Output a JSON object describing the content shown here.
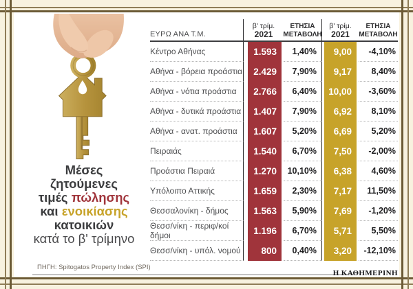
{
  "title": {
    "line1": "Μέσες",
    "line2": "ζητούμενες",
    "line3_prefix": "τιμές",
    "line3_highlight": "πώλησης",
    "line4_prefix": "και",
    "line4_highlight": "ενοικίασης",
    "line5": "κατοικιών",
    "line6": "κατά το β' τρίμηνο"
  },
  "table": {
    "corner_label": "ΕΥΡΩ ΑΝΑ Τ.Μ.",
    "headers": {
      "quarter_line1": "β' τρίμ.",
      "quarter_line2": "2021",
      "change_line1": "ΕΤΗΣΙΑ",
      "change_line2": "ΜΕΤΑΒΟΛΗ"
    }
  },
  "chart_data": {
    "type": "table",
    "title": "Μέσες ζητούμενες τιμές πώλησης και ενοικίασης κατοικιών κατά το β' τρίμηνο",
    "unit_label": "ΕΥΡΩ ΑΝΑ Τ.Μ.",
    "column_groups": [
      {
        "metric": "πώλησης",
        "period": "β' τρίμ. 2021",
        "change_label": "ΕΤΗΣΙΑ ΜΕΤΑΒΟΛΗ",
        "color": "#a0343b"
      },
      {
        "metric": "ενοικίασης",
        "period": "β' τρίμ. 2021",
        "change_label": "ΕΤΗΣΙΑ ΜΕΤΑΒΟΛΗ",
        "color": "#c7a32a"
      }
    ],
    "rows": [
      {
        "area": "Κέντρο Αθήνας",
        "sale_price": "1.593",
        "sale_change": "1,40%",
        "rent_price": "9,00",
        "rent_change": "-4,10%"
      },
      {
        "area": "Αθήνα - βόρεια προάστια",
        "sale_price": "2.429",
        "sale_change": "7,90%",
        "rent_price": "9,17",
        "rent_change": "8,40%"
      },
      {
        "area": "Αθήνα - νότια προάστια",
        "sale_price": "2.766",
        "sale_change": "6,40%",
        "rent_price": "10,00",
        "rent_change": "-3,60%"
      },
      {
        "area": "Αθήνα - δυτικά προάστια",
        "sale_price": "1.407",
        "sale_change": "7,90%",
        "rent_price": "6,92",
        "rent_change": "8,10%"
      },
      {
        "area": "Αθήνα - ανατ. προάστια",
        "sale_price": "1.607",
        "sale_change": "5,20%",
        "rent_price": "6,69",
        "rent_change": "5,20%"
      },
      {
        "area": "Πειραιάς",
        "sale_price": "1.540",
        "sale_change": "6,70%",
        "rent_price": "7,50",
        "rent_change": "-2,00%"
      },
      {
        "area": "Προάστια Πειραιά",
        "sale_price": "1.270",
        "sale_change": "10,10%",
        "rent_price": "6,38",
        "rent_change": "4,60%"
      },
      {
        "area": "Υπόλοιπο Αττικής",
        "sale_price": "1.659",
        "sale_change": "2,30%",
        "rent_price": "7,17",
        "rent_change": "11,50%"
      },
      {
        "area": "Θεσσαλονίκη - δήμος",
        "sale_price": "1.563",
        "sale_change": "5,90%",
        "rent_price": "7,69",
        "rent_change": "-1,20%"
      },
      {
        "area": "Θεσσ/νίκη - περιφ/κοί δήμοι",
        "sale_price": "1.196",
        "sale_change": "6,70%",
        "rent_price": "5,71",
        "rent_change": "5,50%"
      },
      {
        "area": "Θεσσ/νίκη - υπόλ. νομού",
        "sale_price": "800",
        "sale_change": "0,40%",
        "rent_price": "3,20",
        "rent_change": "-12,10%"
      }
    ]
  },
  "source": "ΠΗΓΗ: Spitogatos Property Index (SPI)",
  "brand": "Η ΚΑΘΗΜΕΡΙΝΗ",
  "colors": {
    "sale_column": "#a0343b",
    "rent_column": "#c7a32a",
    "background": "#f8f2df",
    "card": "#ffffff",
    "frame": "#6b5a35"
  }
}
